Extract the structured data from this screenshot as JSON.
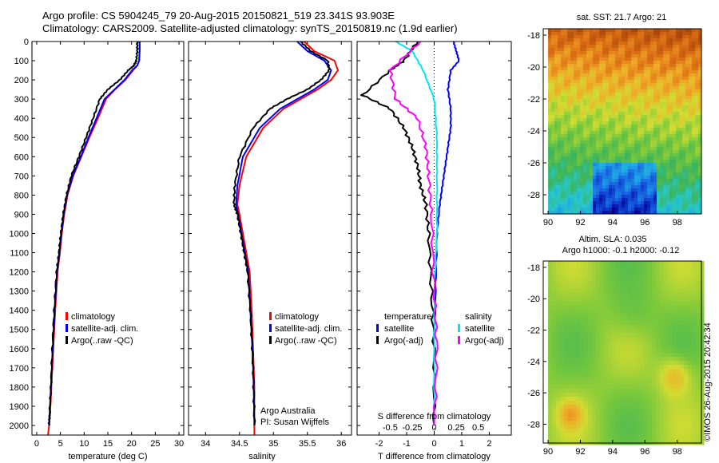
{
  "header": {
    "title_line1": "Argo profile: CS 5904245_79 20-Aug-2015 20150821_519 23.341S 93.903E",
    "title_line2": "Climatology: CARS2009. Satellite-adjusted climatology: synTS_20150819.nc (1.9d earlier)"
  },
  "footer": {
    "credit": "©IMOS 26-Aug-2015 20:42:34"
  },
  "colors": {
    "climatology": "#ff0000",
    "satellite": "#0000ff",
    "argo": "#000000",
    "sat_salinity": "#00e5ee",
    "argo_salinity": "#ff00ff"
  },
  "chart_data": [
    {
      "id": "temperature",
      "type": "line",
      "xlabel": "temperature (deg C)",
      "ylabel": "",
      "xlim": [
        -1,
        31
      ],
      "ylim": [
        2050,
        0
      ],
      "xticks": [
        0,
        5,
        10,
        15,
        20,
        25,
        30
      ],
      "yticks": [
        0,
        100,
        200,
        300,
        400,
        500,
        600,
        700,
        800,
        900,
        1000,
        1100,
        1200,
        1300,
        1400,
        1500,
        1600,
        1700,
        1800,
        1900,
        2000
      ],
      "legend": [
        "climatology",
        "satellite-adj. clim.",
        "Argo(..raw -QC)"
      ],
      "series": [
        {
          "name": "climatology",
          "x": [
            21.7,
            21.7,
            21.6,
            21.2,
            20.3,
            18.7,
            16.5,
            14.6,
            12.9,
            11.1,
            9.4,
            7.7,
            6.5,
            5.8,
            5.3,
            4.9,
            4.4,
            3.9,
            3.5,
            3.1,
            2.8,
            2.6,
            2.4
          ],
          "y": [
            0,
            50,
            100,
            125,
            150,
            200,
            250,
            300,
            400,
            500,
            600,
            700,
            800,
            900,
            1000,
            1100,
            1200,
            1400,
            1600,
            1800,
            1950,
            2000,
            2050
          ]
        },
        {
          "name": "satellite-adj. clim.",
          "x": [
            21.7,
            21.7,
            21.6,
            21.2,
            20.1,
            18.5,
            16.4,
            14.3,
            12.6,
            10.9,
            9.3,
            7.6,
            6.4,
            5.7,
            5.2,
            4.8,
            4.3,
            3.8,
            3.4,
            3.0,
            2.7,
            2.6
          ],
          "y": [
            0,
            50,
            100,
            125,
            150,
            200,
            250,
            300,
            400,
            500,
            600,
            700,
            800,
            900,
            1000,
            1100,
            1200,
            1400,
            1600,
            1800,
            1950,
            2000
          ]
        },
        {
          "name": "Argo(..raw -QC)",
          "x": [
            21.2,
            21.2,
            21.0,
            20.5,
            19.3,
            17.5,
            15.0,
            13.3,
            11.9,
            10.4,
            8.9,
            7.3,
            6.3,
            5.6,
            5.1,
            4.7,
            4.2,
            3.7,
            3.3,
            3.0,
            2.7,
            2.6
          ],
          "y": [
            0,
            50,
            100,
            125,
            150,
            200,
            250,
            300,
            400,
            500,
            600,
            700,
            800,
            900,
            1000,
            1100,
            1200,
            1400,
            1600,
            1800,
            1950,
            2000
          ]
        }
      ]
    },
    {
      "id": "salinity",
      "type": "line",
      "xlabel": "salinity",
      "xlim": [
        33.75,
        36.15
      ],
      "ylim": [
        2050,
        0
      ],
      "xticks": [
        34,
        34.5,
        35,
        35.5,
        36
      ],
      "legend": [
        "climatology",
        "satellite-adj. clim.",
        "Argo(..raw -QC)"
      ],
      "annotation": [
        "Argo Australia",
        "PI: Susan Wijffels"
      ],
      "series": [
        {
          "name": "climatology",
          "x": [
            35.45,
            35.6,
            35.9,
            35.95,
            35.85,
            35.65,
            35.4,
            35.15,
            34.85,
            34.6,
            34.5,
            34.47,
            34.5,
            34.55,
            34.6,
            34.65,
            34.68,
            34.7,
            34.72,
            34.72,
            34.72
          ],
          "y": [
            0,
            50,
            100,
            150,
            200,
            250,
            300,
            350,
            450,
            600,
            750,
            850,
            900,
            1000,
            1100,
            1200,
            1400,
            1600,
            1800,
            2000,
            2050
          ]
        },
        {
          "name": "satellite-adj. clim.",
          "x": [
            35.35,
            35.5,
            35.75,
            35.85,
            35.8,
            35.6,
            35.35,
            35.1,
            34.8,
            34.55,
            34.47,
            34.45,
            34.48,
            34.53,
            34.58,
            34.63,
            34.66,
            34.69,
            34.71,
            34.72
          ],
          "y": [
            0,
            50,
            100,
            150,
            200,
            250,
            300,
            350,
            450,
            600,
            750,
            850,
            900,
            1000,
            1100,
            1200,
            1400,
            1600,
            1800,
            2000
          ]
        },
        {
          "name": "Argo(..raw -QC)",
          "x": [
            35.4,
            35.55,
            35.8,
            35.82,
            35.7,
            35.5,
            35.2,
            34.95,
            34.7,
            34.5,
            34.43,
            34.42,
            34.47,
            34.52,
            34.57,
            34.62,
            34.66,
            34.69,
            34.71,
            34.72
          ],
          "y": [
            0,
            50,
            100,
            150,
            200,
            250,
            300,
            350,
            450,
            600,
            750,
            850,
            900,
            1000,
            1100,
            1200,
            1400,
            1600,
            1800,
            2000
          ]
        }
      ]
    },
    {
      "id": "difference",
      "type": "line",
      "xlabel": "T difference from climatology",
      "xlabel_top": "S difference from climatology",
      "xlim": [
        -2.8,
        2.8
      ],
      "ylim": [
        2050,
        0
      ],
      "xticks_T": [
        "-2",
        "-1",
        "0",
        "1",
        "2"
      ],
      "xticks_S": [
        "-0.5",
        "-0.25",
        "0",
        "0.25",
        "0.5"
      ],
      "legend_groups": [
        {
          "title": "temperature",
          "items": [
            "satellite",
            "Argo(-adj)"
          ]
        },
        {
          "title": "salinity",
          "items": [
            "satellite",
            "Argo(-adj)"
          ]
        }
      ],
      "series": [
        {
          "name": "satellite (T)",
          "x": [
            0.7,
            0.8,
            0.9,
            0.6,
            0.5,
            0.6,
            0.6,
            0.5,
            0.4,
            0.3,
            0.2,
            0.1,
            0.05,
            0.0,
            0.0
          ],
          "y": [
            0,
            50,
            100,
            150,
            250,
            350,
            450,
            550,
            650,
            750,
            850,
            1000,
            1300,
            1600,
            2000
          ]
        },
        {
          "name": "Argo(-adj) (T)",
          "x": [
            -0.6,
            -1.1,
            -1.6,
            -2.6,
            -1.6,
            -1.1,
            -0.8,
            -0.6,
            -0.5,
            -0.3,
            -0.2,
            -0.1,
            0.0,
            0.0
          ],
          "y": [
            0,
            100,
            150,
            280,
            350,
            450,
            550,
            650,
            750,
            850,
            1000,
            1300,
            1600,
            2000
          ]
        },
        {
          "name": "satellite (S)",
          "x": [
            -1.4,
            -0.8,
            -0.4,
            0.0,
            0.1,
            0.1,
            0.1,
            0.0,
            0.0,
            0.0
          ],
          "y": [
            0,
            50,
            150,
            300,
            500,
            700,
            1000,
            1300,
            1600,
            2000
          ]
        },
        {
          "name": "Argo(-adj) (S)",
          "x": [
            -0.5,
            -1.6,
            -1.4,
            -0.6,
            -0.3,
            -0.2,
            -0.1,
            0.0,
            0.1,
            0.0
          ],
          "y": [
            0,
            150,
            300,
            400,
            550,
            700,
            900,
            1300,
            1600,
            2000
          ]
        }
      ]
    },
    {
      "id": "sst_map",
      "type": "heatmap",
      "title": "sat. SST: 21.7 Argo: 21",
      "xlim": [
        89.7,
        99.5
      ],
      "ylim": [
        -29.2,
        -17.6
      ],
      "xticks": [
        90,
        92,
        94,
        96,
        98
      ],
      "yticks": [
        -18,
        -20,
        -22,
        -24,
        -26,
        -28
      ]
    },
    {
      "id": "sla_map",
      "type": "heatmap",
      "title_line1": "Altim. SLA: 0.035",
      "title_line2": "Argo h1000: -0.1 h2000: -0.12",
      "xlim": [
        89.7,
        99.5
      ],
      "ylim": [
        -29.2,
        -17.6
      ],
      "xticks": [
        90,
        92,
        94,
        96,
        98
      ],
      "yticks": [
        -18,
        -20,
        -22,
        -24,
        -26,
        -28
      ]
    }
  ]
}
